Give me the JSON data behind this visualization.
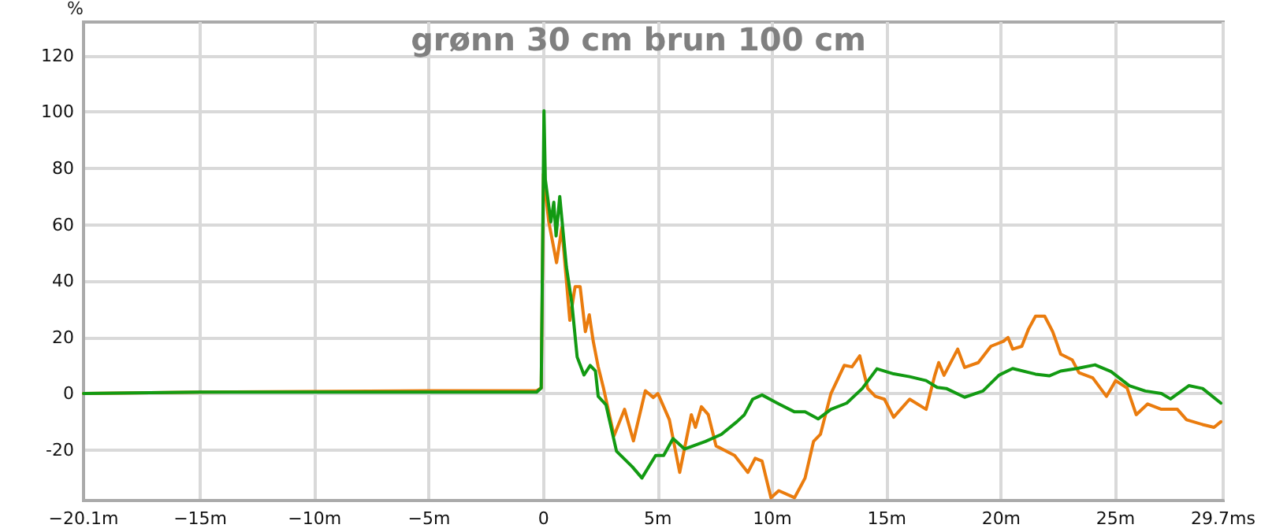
{
  "chart_data": {
    "type": "line",
    "title": "grønn 30 cm brun 100 cm",
    "ylabel": "%",
    "xlim": [
      -20.1,
      29.7
    ],
    "ylim": [
      -38,
      132
    ],
    "xticks": [
      {
        "value": -20.1,
        "label": "−20.1m"
      },
      {
        "value": -15,
        "label": "−15m"
      },
      {
        "value": -10,
        "label": "−10m"
      },
      {
        "value": -5,
        "label": "−5m"
      },
      0,
      {
        "value": 5,
        "label": "5m"
      },
      {
        "value": 10,
        "label": "10m"
      },
      {
        "value": 15,
        "label": "15m"
      },
      {
        "value": 20,
        "label": "20m"
      },
      {
        "value": 25,
        "label": "25m"
      },
      {
        "value": 29.7,
        "label": "29.7ms"
      }
    ],
    "yticks": [
      -20,
      0,
      20,
      40,
      60,
      80,
      100,
      120
    ],
    "grid": true,
    "marker": "none",
    "series": [
      {
        "color": "#ea7c0e",
        "x": [
          -20.1,
          -15,
          -5,
          -0.3,
          -0.1,
          0,
          0.23,
          0.57,
          0.8,
          1.15,
          1.38,
          1.6,
          1.83,
          2.0,
          2.17,
          2.39,
          2.62,
          3.08,
          3.54,
          3.93,
          4.45,
          4.8,
          5.0,
          5.5,
          5.95,
          6.46,
          6.64,
          6.9,
          7.2,
          7.54,
          8.0,
          8.35,
          8.93,
          9.25,
          9.55,
          9.94,
          10.28,
          10.97,
          11.43,
          11.8,
          12.1,
          12.56,
          13.14,
          13.48,
          13.82,
          14.17,
          14.5,
          14.9,
          15.3,
          16.0,
          16.72,
          17.1,
          17.27,
          17.5,
          18.1,
          18.4,
          19.0,
          19.55,
          20.1,
          20.3,
          20.5,
          20.9,
          21.2,
          21.5,
          21.9,
          22.25,
          22.6,
          23.1,
          23.4,
          24.0,
          24.6,
          25.0,
          25.5,
          25.9,
          26.4,
          27.0,
          27.7,
          28.1,
          28.8,
          29.3,
          29.6
        ],
        "values": [
          0,
          0.5,
          1,
          1,
          2,
          78,
          61,
          46.5,
          59,
          26,
          38,
          38,
          22,
          28,
          18.7,
          9.5,
          2,
          -15,
          -5.6,
          -16.8,
          1,
          -1.4,
          0,
          -9.3,
          -28,
          -7.5,
          -12,
          -4.7,
          -7.5,
          -18.6,
          -20.5,
          -22,
          -28,
          -23,
          -24,
          -37,
          -34.5,
          -37,
          -30,
          -17,
          -14.5,
          0,
          10,
          9.5,
          13.4,
          1.8,
          -1,
          -2,
          -8.4,
          -2,
          -5.6,
          6.5,
          11,
          6.5,
          15.8,
          9.3,
          11,
          16.8,
          18.6,
          19.9,
          15.8,
          16.8,
          23,
          27.5,
          27.5,
          22,
          14,
          12,
          7.4,
          5.6,
          -1,
          4.6,
          2,
          -7.5,
          -3.7,
          -5.6,
          -5.6,
          -9.3,
          -11,
          -12,
          -10
        ]
      },
      {
        "color": "#129a12",
        "x": [
          -20.1,
          -15,
          -5,
          -0.3,
          -0.1,
          0.02,
          0.08,
          0.32,
          0.45,
          0.55,
          0.71,
          1.0,
          1.24,
          1.47,
          1.77,
          2.04,
          2.27,
          2.39,
          2.73,
          3.19,
          3.88,
          4.3,
          4.9,
          5.25,
          5.66,
          6.16,
          7.08,
          7.77,
          8.45,
          8.78,
          9.14,
          9.55,
          10.28,
          10.97,
          11.43,
          12.0,
          12.56,
          13.25,
          13.93,
          14.57,
          15.3,
          16.0,
          16.72,
          17.2,
          17.6,
          18.4,
          19.2,
          19.9,
          20.5,
          21.5,
          22.1,
          22.6,
          23.3,
          24.1,
          24.8,
          25.6,
          26.3,
          27.0,
          27.4,
          28.2,
          28.8,
          29.6
        ],
        "values": [
          0,
          0.5,
          0.5,
          0.5,
          2,
          100.5,
          76,
          61,
          68,
          56,
          70,
          45,
          32,
          13,
          6.6,
          10,
          8,
          -1,
          -4,
          -20.5,
          -26,
          -30,
          -22,
          -22,
          -16,
          -19.7,
          -17,
          -14.5,
          -10,
          -7.5,
          -2,
          -0.5,
          -3.7,
          -6.5,
          -6.5,
          -9,
          -5.6,
          -3.4,
          1.8,
          8.8,
          7,
          6,
          4.6,
          2.2,
          1.8,
          -1.3,
          0.9,
          6.5,
          8.9,
          6.9,
          6.3,
          8,
          8.9,
          10.2,
          7.8,
          2.8,
          0.9,
          0,
          -1.9,
          2.8,
          1.8,
          -3.4
        ]
      }
    ]
  }
}
